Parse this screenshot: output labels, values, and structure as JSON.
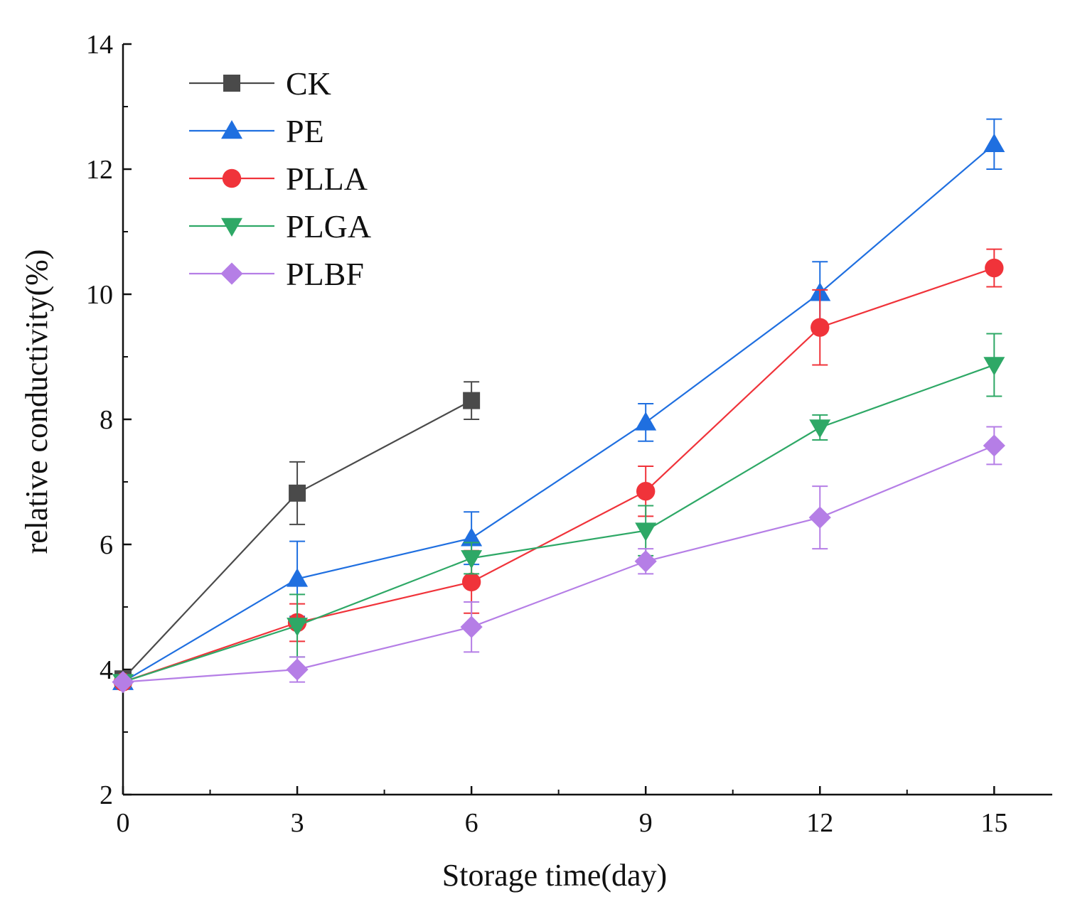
{
  "chart_data": {
    "type": "line",
    "title": "",
    "xlabel": "Storage time(day)",
    "ylabel": "relative conductivity(%)",
    "xlim": [
      0,
      16
    ],
    "ylim": [
      2,
      14
    ],
    "x_ticks": [
      0,
      3,
      6,
      9,
      12,
      15
    ],
    "x_minor_ticks": [
      1.5,
      4.5,
      7.5,
      10.5,
      13.5
    ],
    "y_ticks": [
      2,
      4,
      6,
      8,
      10,
      12,
      14
    ],
    "y_minor_ticks": [
      3,
      5,
      7,
      9,
      11,
      13
    ],
    "legend_position": "top-left",
    "grid": false,
    "series": [
      {
        "name": "CK",
        "color": "#4a4a4a",
        "marker": "square",
        "x": [
          0,
          3,
          6
        ],
        "values": [
          3.85,
          6.82,
          8.3
        ],
        "errors": [
          0.1,
          0.5,
          0.3
        ]
      },
      {
        "name": "PE",
        "color": "#1f6fe0",
        "marker": "triangle-up",
        "x": [
          0,
          3,
          6,
          9,
          12,
          15
        ],
        "values": [
          3.8,
          5.45,
          6.1,
          7.95,
          10.02,
          12.4
        ],
        "errors": [
          0.08,
          0.6,
          0.42,
          0.3,
          0.5,
          0.4
        ]
      },
      {
        "name": "PLLA",
        "color": "#f0333a",
        "marker": "circle",
        "x": [
          0,
          3,
          6,
          9,
          12,
          15
        ],
        "values": [
          3.8,
          4.75,
          5.4,
          6.85,
          9.47,
          10.42
        ],
        "errors": [
          0.06,
          0.3,
          0.5,
          0.4,
          0.6,
          0.3
        ]
      },
      {
        "name": "PLGA",
        "color": "#2ea866",
        "marker": "triangle-down",
        "x": [
          0,
          3,
          6,
          9,
          12,
          15
        ],
        "values": [
          3.8,
          4.7,
          5.78,
          6.22,
          7.87,
          8.87
        ],
        "errors": [
          0.06,
          0.5,
          0.25,
          0.4,
          0.2,
          0.5
        ]
      },
      {
        "name": "PLBF",
        "color": "#b57ee6",
        "marker": "diamond",
        "x": [
          0,
          3,
          6,
          9,
          12,
          15
        ],
        "values": [
          3.8,
          4.0,
          4.68,
          5.73,
          6.43,
          7.58
        ],
        "errors": [
          0.05,
          0.2,
          0.4,
          0.2,
          0.5,
          0.3
        ]
      }
    ]
  }
}
